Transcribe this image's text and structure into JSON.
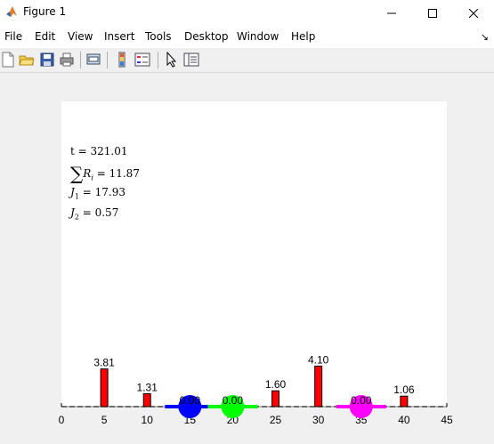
{
  "window": {
    "title": "Figure 1",
    "controls": [
      "minimize",
      "maximize",
      "close"
    ]
  },
  "menu": [
    "File",
    "Edit",
    "View",
    "Insert",
    "Tools",
    "Desktop",
    "Window",
    "Help"
  ],
  "toolbar": [
    "new-figure-icon",
    "open-file-icon",
    "save-icon",
    "print-icon",
    "print-preview-icon",
    "colorbar-icon",
    "legend-icon",
    "edit-plot-pointer-icon",
    "property-inspector-icon"
  ],
  "info": {
    "t": "t = 321.01",
    "sum_r": "= 11.87",
    "j1": "= 17.93",
    "j2": "= 0.57"
  },
  "chart_data": {
    "type": "bar",
    "xlim": [
      0,
      45
    ],
    "xticks": [
      "0",
      "5",
      "10",
      "15",
      "20",
      "25",
      "30",
      "35",
      "40",
      "45"
    ],
    "bars": [
      {
        "x": 5,
        "value": 3.81,
        "label": "3.81"
      },
      {
        "x": 10,
        "value": 1.31,
        "label": "1.31"
      },
      {
        "x": 25,
        "value": 1.6,
        "label": "1.60"
      },
      {
        "x": 30,
        "value": 4.1,
        "label": "4.10"
      },
      {
        "x": 40,
        "value": 1.06,
        "label": "1.06"
      }
    ],
    "agents": [
      {
        "x": 15,
        "value": 0.0,
        "label": "0.00",
        "color": "#0000ff"
      },
      {
        "x": 20,
        "value": 0.0,
        "label": "0.00",
        "color": "#00ff00"
      },
      {
        "x": 35,
        "value": 0.0,
        "label": "0.00",
        "color": "#ff00ff"
      }
    ],
    "bar_color": "#ff0000"
  }
}
